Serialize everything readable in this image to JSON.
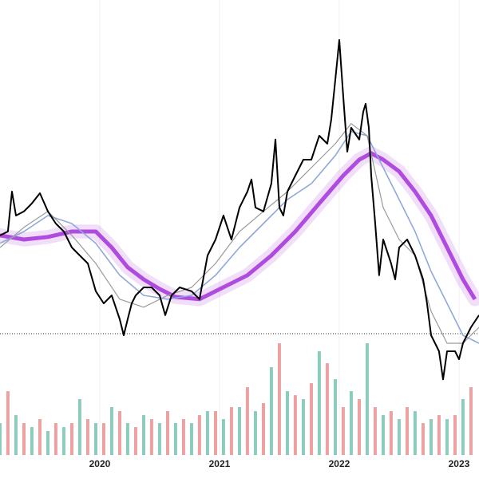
{
  "chart_data": {
    "type": "line",
    "xlim": [
      2019.167,
      2023.167
    ],
    "xticks": [
      2020,
      2021,
      2022,
      2023
    ],
    "ylim": [
      -10,
      110
    ],
    "reference_line": 5.5,
    "series": [
      {
        "color": "#b04be0",
        "width": 5,
        "glow": true,
        "x": [
          2019.167,
          2019.367,
          2019.567,
          2019.767,
          2019.967,
          2020.1,
          2020.233,
          2020.367,
          2020.5,
          2020.633,
          2020.833,
          2020.967,
          2021.1,
          2021.233,
          2021.433,
          2021.633,
          2021.833,
          2022.033,
          2022.167,
          2022.267,
          2022.367,
          2022.5,
          2022.633,
          2022.767,
          2022.9,
          2023.033,
          2023.133
        ],
        "values": [
          36.3,
          35,
          35.8,
          37.5,
          37.5,
          32.5,
          26.3,
          22.5,
          19.5,
          17,
          16.3,
          18.8,
          21.3,
          23.8,
          30,
          37.5,
          46.3,
          55,
          60,
          62,
          60,
          56.3,
          50,
          42.5,
          32.5,
          22.5,
          16.3
        ]
      },
      {
        "color": "#8fa8dc",
        "width": 1.6,
        "glow": false,
        "x": [
          2019.167,
          2019.367,
          2019.567,
          2019.767,
          2019.967,
          2020.167,
          2020.367,
          2020.567,
          2020.767,
          2020.967,
          2021.167,
          2021.367,
          2021.567,
          2021.767,
          2021.967,
          2022.1,
          2022.233,
          2022.367,
          2022.5,
          2022.633,
          2022.767,
          2022.9,
          2023.033,
          2023.167
        ],
        "values": [
          33.8,
          37.5,
          42.5,
          40,
          33.8,
          23.8,
          17.5,
          16.3,
          17.5,
          23.8,
          32.5,
          40,
          47.5,
          52.5,
          61.3,
          68.8,
          67.5,
          57.5,
          47.5,
          37.5,
          25,
          15,
          5,
          2.5
        ]
      },
      {
        "color": "#9a9a9a",
        "width": 1.2,
        "glow": false,
        "x": [
          2019.167,
          2019.367,
          2019.567,
          2019.767,
          2019.967,
          2020.167,
          2020.367,
          2020.567,
          2020.767,
          2020.967,
          2021.167,
          2021.367,
          2021.567,
          2021.767,
          2021.967,
          2022.1,
          2022.233,
          2022.367,
          2022.5,
          2022.633,
          2022.767,
          2022.9,
          2023.033,
          2023.167
        ],
        "values": [
          32.5,
          38.8,
          43.8,
          36.3,
          27.5,
          16.3,
          13.8,
          17.5,
          20,
          27.5,
          37.5,
          43.8,
          50,
          57.5,
          65,
          71.3,
          67.5,
          45,
          35,
          30,
          12.5,
          2.5,
          2.5,
          7.5
        ]
      },
      {
        "color": "#000000",
        "width": 2,
        "glow": false,
        "x": [
          2019.167,
          2019.233,
          2019.267,
          2019.3,
          2019.367,
          2019.433,
          2019.5,
          2019.567,
          2019.633,
          2019.7,
          2019.767,
          2019.833,
          2019.9,
          2019.967,
          2020.033,
          2020.1,
          2020.167,
          2020.2,
          2020.233,
          2020.267,
          2020.3,
          2020.367,
          2020.433,
          2020.5,
          2020.547,
          2020.6,
          2020.667,
          2020.767,
          2020.833,
          2020.9,
          2020.967,
          2021.033,
          2021.1,
          2021.167,
          2021.233,
          2021.267,
          2021.3,
          2021.367,
          2021.433,
          2021.467,
          2021.5,
          2021.533,
          2021.567,
          2021.633,
          2021.7,
          2021.767,
          2021.833,
          2021.9,
          2021.933,
          2021.967,
          2022.0,
          2022.033,
          2022.067,
          2022.1,
          2022.167,
          2022.2,
          2022.22,
          2022.247,
          2022.267,
          2022.3,
          2022.333,
          2022.367,
          2022.433,
          2022.467,
          2022.5,
          2022.567,
          2022.633,
          2022.7,
          2022.733,
          2022.767,
          2022.8,
          2022.833,
          2022.867,
          2022.9,
          2022.967,
          2023.0,
          2023.033,
          2023.1,
          2023.167
        ],
        "values": [
          36.3,
          37.5,
          50,
          42.5,
          43.8,
          46.3,
          49.5,
          43.8,
          40,
          37.5,
          32.5,
          30,
          27.5,
          18.8,
          15,
          17.5,
          10,
          5,
          10,
          15,
          17.5,
          20,
          20,
          17.5,
          11.3,
          17.5,
          20,
          18.8,
          16.3,
          30,
          35,
          42.5,
          35,
          45,
          50,
          53.8,
          45,
          43.8,
          52.5,
          66.3,
          45,
          42.5,
          50,
          55,
          60,
          60,
          67.5,
          65,
          72.5,
          85,
          97.5,
          80,
          62.5,
          70,
          66.3,
          75,
          77.5,
          70,
          55,
          40,
          23.8,
          35,
          27.5,
          22.5,
          32.5,
          35,
          30,
          22.5,
          15,
          5,
          2.5,
          0,
          -8.8,
          0,
          0,
          -2.5,
          2.5,
          7.5,
          11.3
        ]
      }
    ],
    "volume": {
      "ylim": [
        0,
        200
      ],
      "colors": [
        "#6fbfae",
        "#e98a8a"
      ],
      "x": [
        2019.167,
        2019.233,
        2019.3,
        2019.367,
        2019.433,
        2019.5,
        2019.567,
        2019.633,
        2019.7,
        2019.767,
        2019.833,
        2019.9,
        2019.967,
        2020.033,
        2020.1,
        2020.167,
        2020.233,
        2020.3,
        2020.367,
        2020.433,
        2020.5,
        2020.567,
        2020.633,
        2020.7,
        2020.767,
        2020.833,
        2020.9,
        2020.967,
        2021.033,
        2021.1,
        2021.167,
        2021.233,
        2021.3,
        2021.367,
        2021.433,
        2021.5,
        2021.567,
        2021.633,
        2021.7,
        2021.767,
        2021.833,
        2021.9,
        2021.967,
        2022.033,
        2022.1,
        2022.167,
        2022.233,
        2022.3,
        2022.367,
        2022.433,
        2022.5,
        2022.567,
        2022.633,
        2022.7,
        2022.767,
        2022.833,
        2022.9,
        2022.967,
        2023.033,
        2023.1
      ],
      "values": [
        40,
        80,
        50,
        40,
        35,
        45,
        30,
        40,
        35,
        40,
        70,
        45,
        40,
        40,
        60,
        55,
        40,
        35,
        50,
        45,
        40,
        55,
        40,
        45,
        40,
        50,
        55,
        55,
        45,
        60,
        60,
        85,
        55,
        65,
        110,
        140,
        80,
        75,
        70,
        90,
        130,
        115,
        95,
        60,
        80,
        70,
        140,
        60,
        50,
        55,
        45,
        60,
        55,
        40,
        45,
        50,
        45,
        50,
        70,
        85
      ]
    }
  }
}
